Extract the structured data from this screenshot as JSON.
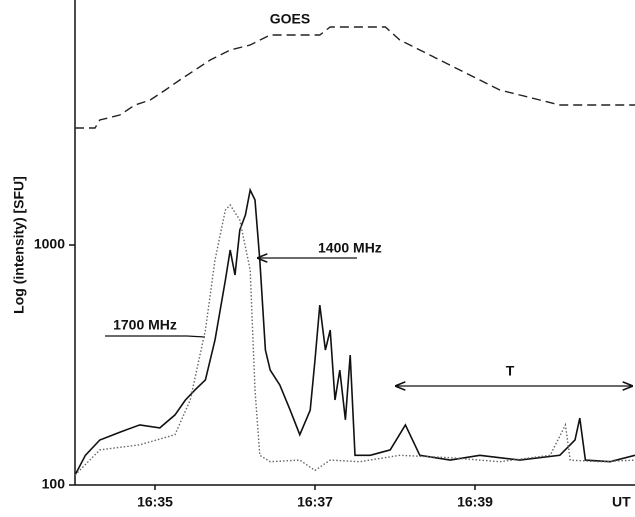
{
  "chart_data": {
    "type": "line",
    "y_label": "Log (intensity) [SFU]",
    "x_label": "UT",
    "log_y": true,
    "xlim": [
      994,
      1001
    ],
    "xticks": [
      {
        "value": 995,
        "label": "16:35"
      },
      {
        "value": 997,
        "label": "16:37"
      },
      {
        "value": 999,
        "label": "16:39"
      }
    ],
    "ylim": [
      100,
      10000
    ],
    "yticks": [
      100,
      1000
    ],
    "annotations": [
      "GOES",
      "1400 MHz",
      "1700 MHz",
      "T"
    ],
    "series": [
      {
        "name": "GOES",
        "color": "#222222",
        "linestyle": "dashed",
        "x": [
          994,
          994.25,
          994.31,
          994.56,
          994.75,
          994.94,
          995.13,
          995.31,
          995.5,
          995.69,
          995.94,
          996.19,
          996.44,
          996.69,
          997.06,
          997.19,
          997.88,
          998.06,
          998.31,
          998.56,
          998.81,
          999.06,
          999.31,
          999.56,
          999.81,
          1000.06,
          1001
        ],
        "values": [
          3073,
          3073,
          3317,
          3481,
          3831,
          4019,
          4423,
          4870,
          5358,
          5900,
          6494,
          6813,
          7499,
          7499,
          7499,
          8096,
          8096,
          7147,
          6494,
          5900,
          5358,
          4870,
          4423,
          4217,
          4019,
          3831,
          3831
        ]
      },
      {
        "name": "1400 MHz",
        "color": "#111111",
        "linestyle": "solid",
        "x": [
          994,
          994.13,
          994.31,
          994.56,
          994.81,
          995.06,
          995.25,
          995.38,
          995.5,
          995.63,
          995.75,
          995.88,
          995.94,
          996,
          996.06,
          996.13,
          996.19,
          996.25,
          996.31,
          996.38,
          996.44,
          996.56,
          996.69,
          996.81,
          996.94,
          997,
          997.06,
          997.13,
          997.19,
          997.25,
          997.31,
          997.38,
          997.44,
          997.5,
          997.69,
          997.94,
          998.13,
          998.31,
          998.69,
          999.06,
          999.56,
          1000.06,
          1000.25,
          1000.31,
          1000.38,
          1000.69,
          1001
        ],
        "values": [
          110,
          133,
          154,
          166,
          178,
          173,
          196,
          226,
          249,
          274,
          402,
          715,
          953,
          750,
          1155,
          1334,
          1695,
          1540,
          866,
          365,
          301,
          261,
          205,
          162,
          205,
          332,
          562,
          365,
          442,
          226,
          301,
          187,
          348,
          133,
          133,
          140,
          178,
          133,
          127,
          133,
          127,
          133,
          154,
          190,
          127,
          125,
          133
        ]
      },
      {
        "name": "1700 MHz",
        "color": "#666666",
        "linestyle": "dotted",
        "x": [
          994,
          994.31,
          994.81,
          995.25,
          995.44,
          995.63,
          995.75,
          995.88,
          995.94,
          996.06,
          996.19,
          996.25,
          996.31,
          996.44,
          996.81,
          997,
          997.19,
          997.56,
          998.06,
          998.69,
          999.31,
          999.94,
          1000.13,
          1000.19,
          1000.56,
          1001
        ],
        "values": [
          110,
          140,
          147,
          162,
          226,
          442,
          866,
          1399,
          1468,
          1271,
          787,
          249,
          133,
          125,
          127,
          115,
          127,
          125,
          133,
          130,
          125,
          133,
          178,
          127,
          125,
          127
        ]
      }
    ]
  }
}
